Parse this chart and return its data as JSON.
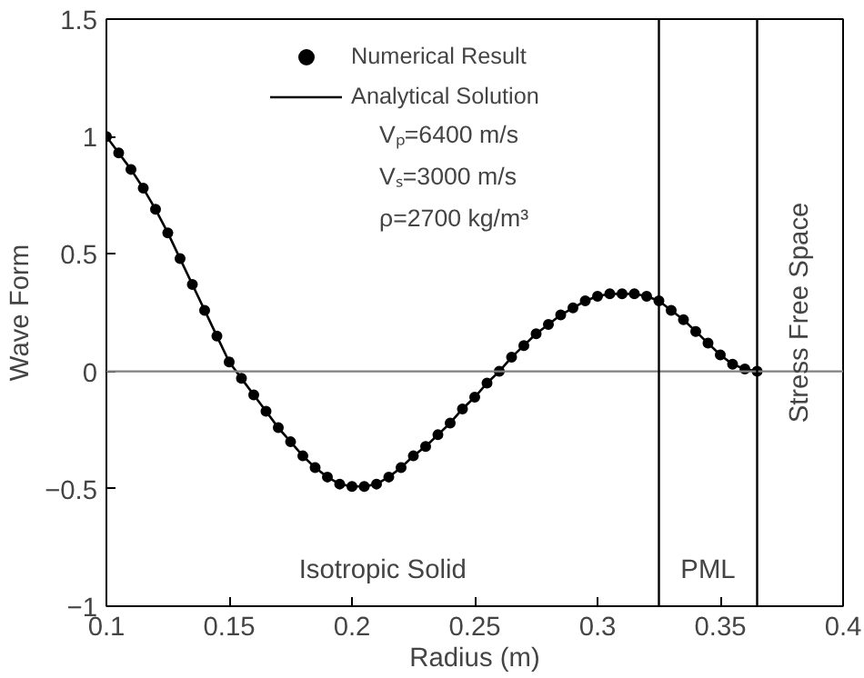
{
  "chart_data": {
    "type": "line",
    "xlabel": "Radius (m)",
    "ylabel": "Wave Form",
    "x": [
      0.1,
      0.105,
      0.11,
      0.115,
      0.12,
      0.125,
      0.13,
      0.135,
      0.14,
      0.145,
      0.15,
      0.155,
      0.16,
      0.165,
      0.17,
      0.175,
      0.18,
      0.185,
      0.19,
      0.195,
      0.2,
      0.205,
      0.21,
      0.215,
      0.22,
      0.225,
      0.23,
      0.235,
      0.24,
      0.245,
      0.25,
      0.255,
      0.26,
      0.265,
      0.27,
      0.275,
      0.28,
      0.285,
      0.29,
      0.295,
      0.3,
      0.305,
      0.31,
      0.315,
      0.32,
      0.325,
      0.33,
      0.335,
      0.34,
      0.345,
      0.35,
      0.355,
      0.36,
      0.365
    ],
    "series": [
      {
        "name": "Numerical Result",
        "type": "scatter",
        "marker": "circle",
        "color": "#000000",
        "values": [
          1.0,
          0.93,
          0.86,
          0.78,
          0.69,
          0.59,
          0.48,
          0.37,
          0.26,
          0.15,
          0.04,
          -0.03,
          -0.1,
          -0.17,
          -0.24,
          -0.3,
          -0.36,
          -0.41,
          -0.45,
          -0.48,
          -0.49,
          -0.49,
          -0.48,
          -0.45,
          -0.41,
          -0.36,
          -0.32,
          -0.27,
          -0.22,
          -0.16,
          -0.11,
          -0.05,
          0.0,
          0.06,
          0.11,
          0.16,
          0.2,
          0.24,
          0.27,
          0.3,
          0.32,
          0.33,
          0.33,
          0.33,
          0.32,
          0.3,
          0.26,
          0.22,
          0.17,
          0.12,
          0.07,
          0.03,
          0.01,
          0.0
        ]
      },
      {
        "name": "Analytical Solution",
        "color": "#000000",
        "values": [
          1.0,
          0.93,
          0.86,
          0.78,
          0.69,
          0.59,
          0.48,
          0.37,
          0.26,
          0.15,
          0.04,
          -0.03,
          -0.1,
          -0.17,
          -0.24,
          -0.3,
          -0.36,
          -0.41,
          -0.45,
          -0.48,
          -0.49,
          -0.49,
          -0.48,
          -0.45,
          -0.41,
          -0.36,
          -0.32,
          -0.27,
          -0.22,
          -0.16,
          -0.11,
          -0.05,
          0.0,
          0.06,
          0.11,
          0.16,
          0.2,
          0.24,
          0.27,
          0.3,
          0.32,
          0.33,
          0.33,
          0.33,
          0.32,
          0.3,
          0.26,
          0.22,
          0.17,
          0.12,
          0.07,
          0.03,
          0.01,
          0.0
        ]
      }
    ],
    "xlim": [
      0.1,
      0.4
    ],
    "xticks": [
      0.1,
      0.15,
      0.2,
      0.25,
      0.3,
      0.35,
      0.4
    ],
    "ylim": [
      -1,
      1.5
    ],
    "yticks": [
      {
        "value": -1,
        "label": "−1"
      },
      {
        "value": -0.5,
        "label": "−0.5"
      },
      0,
      0.5,
      1,
      1.5
    ],
    "ref_lines": [
      {
        "axis": "y",
        "value": 0,
        "color": "#808080"
      },
      {
        "axis": "x",
        "value": 0.325,
        "color": "#000000"
      },
      {
        "axis": "x",
        "value": 0.365,
        "color": "#000000"
      }
    ],
    "annotations": [
      "Vₚ=6400 m/s",
      "Vₛ=3000 m/s",
      "ρ=2700 kg/m³",
      "Isotropic Solid",
      "PML",
      "Stress Free Space"
    ],
    "legend": "top",
    "grid": false
  }
}
